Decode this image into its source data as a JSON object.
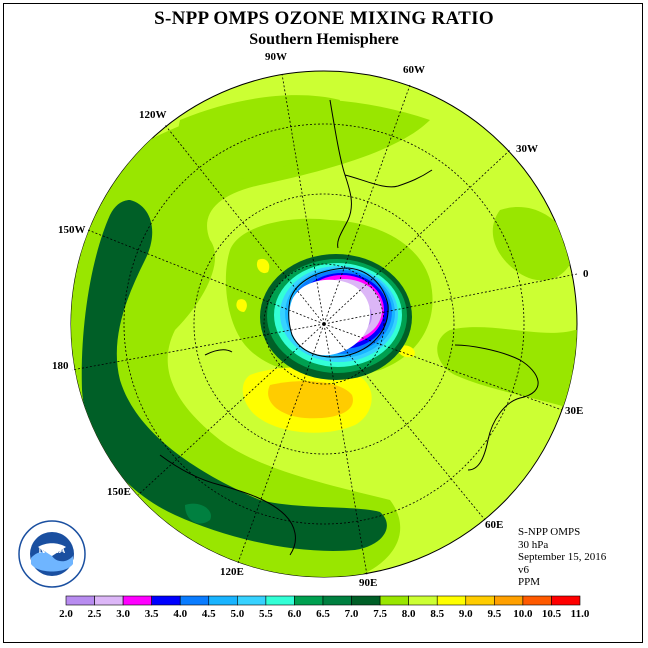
{
  "title": "S-NPP OMPS OZONE MIXING RATIO",
  "subtitle": "Southern Hemisphere",
  "longitude_labels": [
    "90W",
    "60W",
    "30W",
    "0",
    "30E",
    "60E",
    "90E",
    "120E",
    "150E",
    "180",
    "150W",
    "120W"
  ],
  "info": {
    "instrument": "S-NPP OMPS",
    "level": "30 hPa",
    "date": "September 15, 2016",
    "version": "v6",
    "units": "PPM"
  },
  "logo_text": "NOAA",
  "colorbar": {
    "labels": [
      "2.0",
      "2.5",
      "3.0",
      "3.5",
      "4.0",
      "4.5",
      "5.0",
      "5.5",
      "6.0",
      "6.5",
      "7.0",
      "7.5",
      "8.0",
      "8.5",
      "9.0",
      "9.5",
      "10.0",
      "10.5",
      "11.0"
    ],
    "colors": [
      "#b88cf0",
      "#dcb6f7",
      "#ff00ff",
      "#0000ff",
      "#0a7cff",
      "#19b4ff",
      "#37d2ff",
      "#33ffd6",
      "#00a050",
      "#008040",
      "#005f27",
      "#99e600",
      "#ccff33",
      "#ffff00",
      "#ffcc00",
      "#ffa000",
      "#ff5a00",
      "#ff0000",
      "#8c4a30"
    ]
  }
}
